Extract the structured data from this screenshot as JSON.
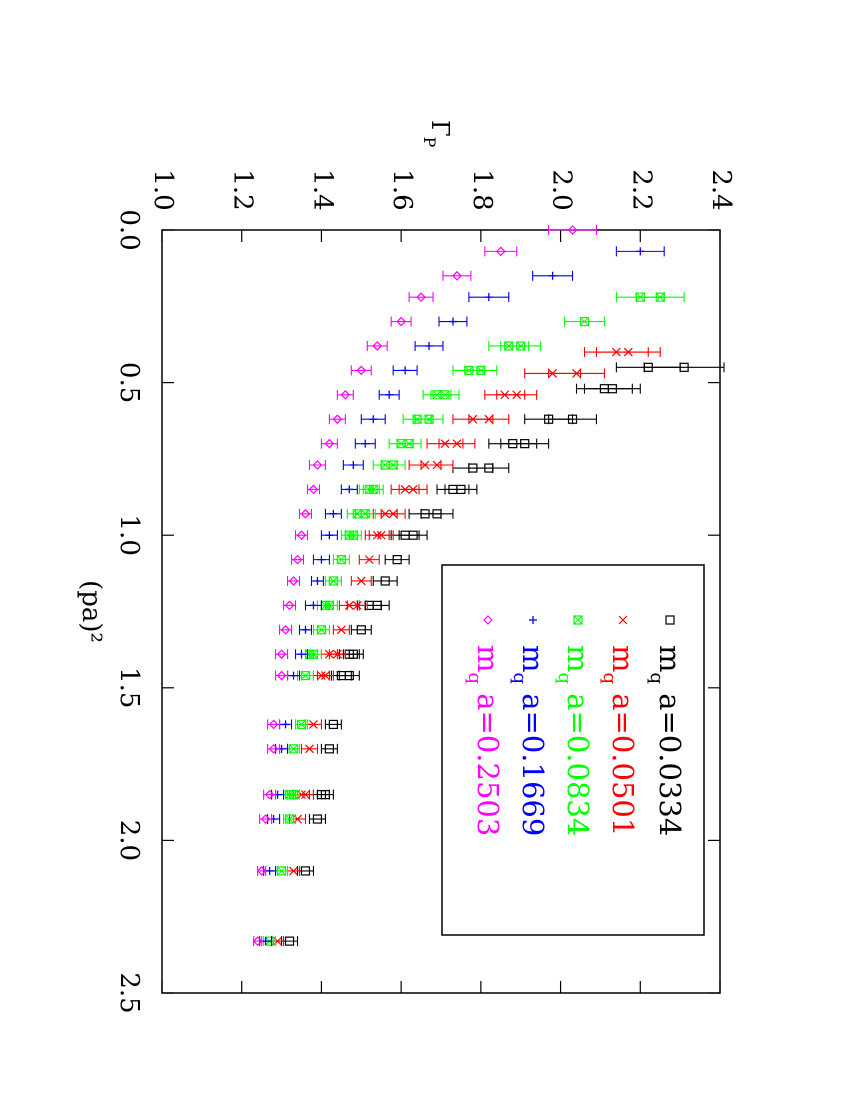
{
  "chart_data": {
    "type": "scatter",
    "orientation": "rotated-90-clockwise",
    "xlabel": "(pa)²",
    "ylabel": "Γ_P",
    "xlim": [
      0.0,
      2.5
    ],
    "ylim": [
      1.0,
      2.4
    ],
    "x_ticks": [
      "0.0",
      "0.5",
      "1.0",
      "1.5",
      "2.0",
      "2.5"
    ],
    "y_ticks": [
      "1.0",
      "1.2",
      "1.4",
      "1.6",
      "1.8",
      "2.0",
      "2.2",
      "2.4"
    ],
    "legend_position": "inside, high (pa)² / high Γ_P corner",
    "series": [
      {
        "name": "m_q a=0.0334",
        "color": "#000000",
        "marker": "square",
        "points": [
          {
            "x": 0.45,
            "y": 2.31,
            "err": 0.1
          },
          {
            "x": 0.45,
            "y": 2.22,
            "err": 0.08
          },
          {
            "x": 0.52,
            "y": 2.13,
            "err": 0.07
          },
          {
            "x": 0.52,
            "y": 2.11,
            "err": 0.07
          },
          {
            "x": 0.62,
            "y": 2.03,
            "err": 0.06
          },
          {
            "x": 0.62,
            "y": 1.97,
            "err": 0.06
          },
          {
            "x": 0.7,
            "y": 1.91,
            "err": 0.06
          },
          {
            "x": 0.7,
            "y": 1.88,
            "err": 0.06
          },
          {
            "x": 0.78,
            "y": 1.82,
            "err": 0.05
          },
          {
            "x": 0.78,
            "y": 1.78,
            "err": 0.05
          },
          {
            "x": 0.85,
            "y": 1.75,
            "err": 0.04
          },
          {
            "x": 0.85,
            "y": 1.73,
            "err": 0.04
          },
          {
            "x": 0.93,
            "y": 1.69,
            "err": 0.04
          },
          {
            "x": 0.93,
            "y": 1.66,
            "err": 0.04
          },
          {
            "x": 1.0,
            "y": 1.63,
            "err": 0.035
          },
          {
            "x": 1.0,
            "y": 1.61,
            "err": 0.035
          },
          {
            "x": 1.08,
            "y": 1.59,
            "err": 0.03
          },
          {
            "x": 1.15,
            "y": 1.56,
            "err": 0.03
          },
          {
            "x": 1.23,
            "y": 1.54,
            "err": 0.03
          },
          {
            "x": 1.23,
            "y": 1.52,
            "err": 0.03
          },
          {
            "x": 1.31,
            "y": 1.5,
            "err": 0.025
          },
          {
            "x": 1.39,
            "y": 1.48,
            "err": 0.025
          },
          {
            "x": 1.39,
            "y": 1.47,
            "err": 0.025
          },
          {
            "x": 1.46,
            "y": 1.47,
            "err": 0.025
          },
          {
            "x": 1.46,
            "y": 1.45,
            "err": 0.025
          },
          {
            "x": 1.62,
            "y": 1.43,
            "err": 0.02
          },
          {
            "x": 1.7,
            "y": 1.42,
            "err": 0.02
          },
          {
            "x": 1.85,
            "y": 1.4,
            "err": 0.02
          },
          {
            "x": 1.85,
            "y": 1.41,
            "err": 0.02
          },
          {
            "x": 1.93,
            "y": 1.39,
            "err": 0.02
          },
          {
            "x": 2.1,
            "y": 1.36,
            "err": 0.02
          },
          {
            "x": 2.33,
            "y": 1.32,
            "err": 0.02
          }
        ]
      },
      {
        "name": "m_q a=0.0501",
        "color": "#ff0000",
        "marker": "cross",
        "points": [
          {
            "x": 0.4,
            "y": 2.17,
            "err": 0.08
          },
          {
            "x": 0.4,
            "y": 2.14,
            "err": 0.08
          },
          {
            "x": 0.47,
            "y": 2.04,
            "err": 0.07
          },
          {
            "x": 0.47,
            "y": 1.98,
            "err": 0.07
          },
          {
            "x": 0.54,
            "y": 1.89,
            "err": 0.05
          },
          {
            "x": 0.54,
            "y": 1.86,
            "err": 0.05
          },
          {
            "x": 0.62,
            "y": 1.82,
            "err": 0.05
          },
          {
            "x": 0.62,
            "y": 1.78,
            "err": 0.05
          },
          {
            "x": 0.7,
            "y": 1.74,
            "err": 0.045
          },
          {
            "x": 0.7,
            "y": 1.71,
            "err": 0.045
          },
          {
            "x": 0.77,
            "y": 1.69,
            "err": 0.04
          },
          {
            "x": 0.77,
            "y": 1.66,
            "err": 0.04
          },
          {
            "x": 0.85,
            "y": 1.63,
            "err": 0.035
          },
          {
            "x": 0.85,
            "y": 1.61,
            "err": 0.035
          },
          {
            "x": 0.93,
            "y": 1.58,
            "err": 0.03
          },
          {
            "x": 0.93,
            "y": 1.56,
            "err": 0.03
          },
          {
            "x": 1.0,
            "y": 1.55,
            "err": 0.03
          },
          {
            "x": 1.0,
            "y": 1.54,
            "err": 0.03
          },
          {
            "x": 1.08,
            "y": 1.52,
            "err": 0.025
          },
          {
            "x": 1.15,
            "y": 1.5,
            "err": 0.025
          },
          {
            "x": 1.23,
            "y": 1.49,
            "err": 0.025
          },
          {
            "x": 1.23,
            "y": 1.47,
            "err": 0.025
          },
          {
            "x": 1.31,
            "y": 1.45,
            "err": 0.02
          },
          {
            "x": 1.39,
            "y": 1.44,
            "err": 0.02
          },
          {
            "x": 1.39,
            "y": 1.42,
            "err": 0.02
          },
          {
            "x": 1.46,
            "y": 1.41,
            "err": 0.02
          },
          {
            "x": 1.46,
            "y": 1.4,
            "err": 0.02
          },
          {
            "x": 1.62,
            "y": 1.38,
            "err": 0.02
          },
          {
            "x": 1.7,
            "y": 1.37,
            "err": 0.02
          },
          {
            "x": 1.85,
            "y": 1.36,
            "err": 0.02
          },
          {
            "x": 1.85,
            "y": 1.35,
            "err": 0.02
          },
          {
            "x": 1.93,
            "y": 1.34,
            "err": 0.02
          },
          {
            "x": 2.1,
            "y": 1.33,
            "err": 0.015
          },
          {
            "x": 2.33,
            "y": 1.29,
            "err": 0.015
          }
        ]
      },
      {
        "name": "m_q a=0.0834",
        "color": "#00ff00",
        "marker": "boxed-cross",
        "points": [
          {
            "x": 0.22,
            "y": 2.25,
            "err": 0.06
          },
          {
            "x": 0.22,
            "y": 2.2,
            "err": 0.06
          },
          {
            "x": 0.3,
            "y": 2.06,
            "err": 0.05
          },
          {
            "x": 0.38,
            "y": 1.9,
            "err": 0.05
          },
          {
            "x": 0.38,
            "y": 1.87,
            "err": 0.05
          },
          {
            "x": 0.46,
            "y": 1.8,
            "err": 0.04
          },
          {
            "x": 0.46,
            "y": 1.77,
            "err": 0.04
          },
          {
            "x": 0.54,
            "y": 1.71,
            "err": 0.035
          },
          {
            "x": 0.54,
            "y": 1.69,
            "err": 0.035
          },
          {
            "x": 0.62,
            "y": 1.67,
            "err": 0.035
          },
          {
            "x": 0.62,
            "y": 1.64,
            "err": 0.035
          },
          {
            "x": 0.7,
            "y": 1.62,
            "err": 0.03
          },
          {
            "x": 0.7,
            "y": 1.6,
            "err": 0.03
          },
          {
            "x": 0.77,
            "y": 1.58,
            "err": 0.03
          },
          {
            "x": 0.77,
            "y": 1.56,
            "err": 0.03
          },
          {
            "x": 0.85,
            "y": 1.53,
            "err": 0.025
          },
          {
            "x": 0.85,
            "y": 1.52,
            "err": 0.025
          },
          {
            "x": 0.93,
            "y": 1.51,
            "err": 0.025
          },
          {
            "x": 0.93,
            "y": 1.49,
            "err": 0.025
          },
          {
            "x": 1.0,
            "y": 1.48,
            "err": 0.02
          },
          {
            "x": 1.0,
            "y": 1.47,
            "err": 0.02
          },
          {
            "x": 1.08,
            "y": 1.45,
            "err": 0.02
          },
          {
            "x": 1.15,
            "y": 1.43,
            "err": 0.02
          },
          {
            "x": 1.23,
            "y": 1.42,
            "err": 0.02
          },
          {
            "x": 1.23,
            "y": 1.41,
            "err": 0.02
          },
          {
            "x": 1.31,
            "y": 1.4,
            "err": 0.02
          },
          {
            "x": 1.39,
            "y": 1.38,
            "err": 0.02
          },
          {
            "x": 1.39,
            "y": 1.37,
            "err": 0.02
          },
          {
            "x": 1.46,
            "y": 1.36,
            "err": 0.02
          },
          {
            "x": 1.62,
            "y": 1.35,
            "err": 0.015
          },
          {
            "x": 1.7,
            "y": 1.33,
            "err": 0.015
          },
          {
            "x": 1.85,
            "y": 1.33,
            "err": 0.015
          },
          {
            "x": 1.85,
            "y": 1.32,
            "err": 0.015
          },
          {
            "x": 1.93,
            "y": 1.32,
            "err": 0.015
          },
          {
            "x": 2.1,
            "y": 1.3,
            "err": 0.015
          },
          {
            "x": 2.33,
            "y": 1.27,
            "err": 0.015
          }
        ]
      },
      {
        "name": "m_q a=0.1669",
        "color": "#0000ff",
        "marker": "plus",
        "points": [
          {
            "x": 0.07,
            "y": 2.2,
            "err": 0.06
          },
          {
            "x": 0.15,
            "y": 1.98,
            "err": 0.05
          },
          {
            "x": 0.22,
            "y": 1.82,
            "err": 0.05
          },
          {
            "x": 0.3,
            "y": 1.73,
            "err": 0.035
          },
          {
            "x": 0.38,
            "y": 1.67,
            "err": 0.035
          },
          {
            "x": 0.46,
            "y": 1.61,
            "err": 0.03
          },
          {
            "x": 0.54,
            "y": 1.57,
            "err": 0.025
          },
          {
            "x": 0.62,
            "y": 1.53,
            "err": 0.03
          },
          {
            "x": 0.7,
            "y": 1.51,
            "err": 0.025
          },
          {
            "x": 0.77,
            "y": 1.48,
            "err": 0.025
          },
          {
            "x": 0.85,
            "y": 1.47,
            "err": 0.02
          },
          {
            "x": 0.93,
            "y": 1.43,
            "err": 0.02
          },
          {
            "x": 1.0,
            "y": 1.42,
            "err": 0.02
          },
          {
            "x": 1.08,
            "y": 1.4,
            "err": 0.02
          },
          {
            "x": 1.15,
            "y": 1.39,
            "err": 0.015
          },
          {
            "x": 1.23,
            "y": 1.38,
            "err": 0.02
          },
          {
            "x": 1.31,
            "y": 1.36,
            "err": 0.015
          },
          {
            "x": 1.39,
            "y": 1.35,
            "err": 0.015
          },
          {
            "x": 1.46,
            "y": 1.33,
            "err": 0.015
          },
          {
            "x": 1.62,
            "y": 1.31,
            "err": 0.015
          },
          {
            "x": 1.7,
            "y": 1.3,
            "err": 0.015
          },
          {
            "x": 1.85,
            "y": 1.29,
            "err": 0.015
          },
          {
            "x": 1.93,
            "y": 1.28,
            "err": 0.015
          },
          {
            "x": 2.1,
            "y": 1.27,
            "err": 0.015
          },
          {
            "x": 2.33,
            "y": 1.26,
            "err": 0.015
          }
        ]
      },
      {
        "name": "m_q a=0.2503",
        "color": "#ff00ff",
        "marker": "diamond",
        "points": [
          {
            "x": 0.0,
            "y": 2.03,
            "err": 0.06
          },
          {
            "x": 0.07,
            "y": 1.85,
            "err": 0.04
          },
          {
            "x": 0.15,
            "y": 1.74,
            "err": 0.035
          },
          {
            "x": 0.22,
            "y": 1.65,
            "err": 0.03
          },
          {
            "x": 0.3,
            "y": 1.6,
            "err": 0.025
          },
          {
            "x": 0.38,
            "y": 1.54,
            "err": 0.025
          },
          {
            "x": 0.46,
            "y": 1.5,
            "err": 0.025
          },
          {
            "x": 0.54,
            "y": 1.46,
            "err": 0.02
          },
          {
            "x": 0.62,
            "y": 1.44,
            "err": 0.02
          },
          {
            "x": 0.7,
            "y": 1.42,
            "err": 0.02
          },
          {
            "x": 0.77,
            "y": 1.39,
            "err": 0.02
          },
          {
            "x": 0.85,
            "y": 1.38,
            "err": 0.015
          },
          {
            "x": 0.93,
            "y": 1.36,
            "err": 0.015
          },
          {
            "x": 1.0,
            "y": 1.35,
            "err": 0.015
          },
          {
            "x": 1.08,
            "y": 1.34,
            "err": 0.015
          },
          {
            "x": 1.15,
            "y": 1.33,
            "err": 0.015
          },
          {
            "x": 1.23,
            "y": 1.32,
            "err": 0.015
          },
          {
            "x": 1.31,
            "y": 1.31,
            "err": 0.015
          },
          {
            "x": 1.39,
            "y": 1.3,
            "err": 0.015
          },
          {
            "x": 1.46,
            "y": 1.3,
            "err": 0.015
          },
          {
            "x": 1.62,
            "y": 1.28,
            "err": 0.015
          },
          {
            "x": 1.7,
            "y": 1.28,
            "err": 0.015
          },
          {
            "x": 1.85,
            "y": 1.27,
            "err": 0.015
          },
          {
            "x": 1.93,
            "y": 1.26,
            "err": 0.015
          },
          {
            "x": 2.1,
            "y": 1.25,
            "err": 0.01
          },
          {
            "x": 2.33,
            "y": 1.24,
            "err": 0.01
          }
        ]
      }
    ]
  }
}
